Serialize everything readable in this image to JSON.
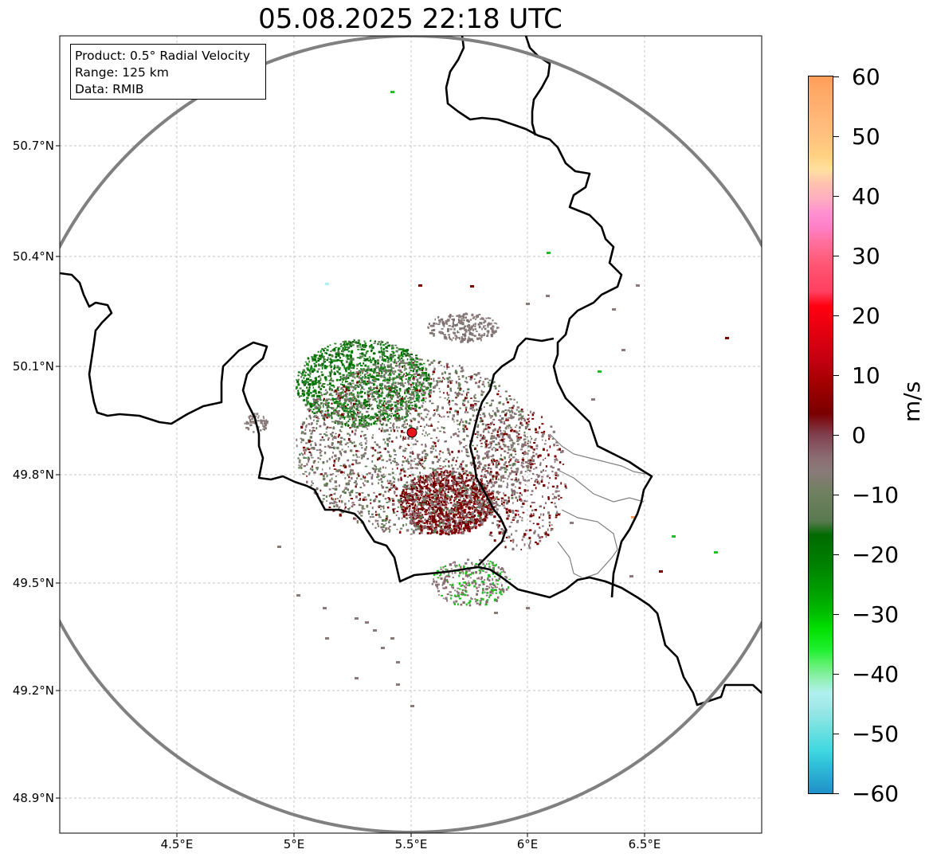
{
  "title": "05.08.2025 22:18 UTC",
  "info_box": {
    "product": "Product: 0.5° Radial Velocity",
    "range": "Range: 125 km",
    "data": "Data: RMIB"
  },
  "latitude_ticks": [
    "50.7°N",
    "50.4°N",
    "50.1°N",
    "49.8°N",
    "49.5°N",
    "49.2°N",
    "48.9°N"
  ],
  "longitude_ticks": [
    "4.5°E",
    "5°E",
    "5.5°E",
    "6°E",
    "6.5°E"
  ],
  "colorbar": {
    "unit": "m/s",
    "tick_labels": [
      "60",
      "50",
      "40",
      "30",
      "20",
      "10",
      "0",
      "−10",
      "−20",
      "−30",
      "−40",
      "−50",
      "−60"
    ],
    "range": [
      -60,
      60
    ]
  },
  "radar_site": {
    "lon": 5.5,
    "lat": 49.915
  },
  "colors": {
    "range_ring": "#808080",
    "radar_marker": "#e8141a",
    "approaching": "#007a00",
    "receding": "#7a0000",
    "near_zero": "#8a7a7a"
  }
}
